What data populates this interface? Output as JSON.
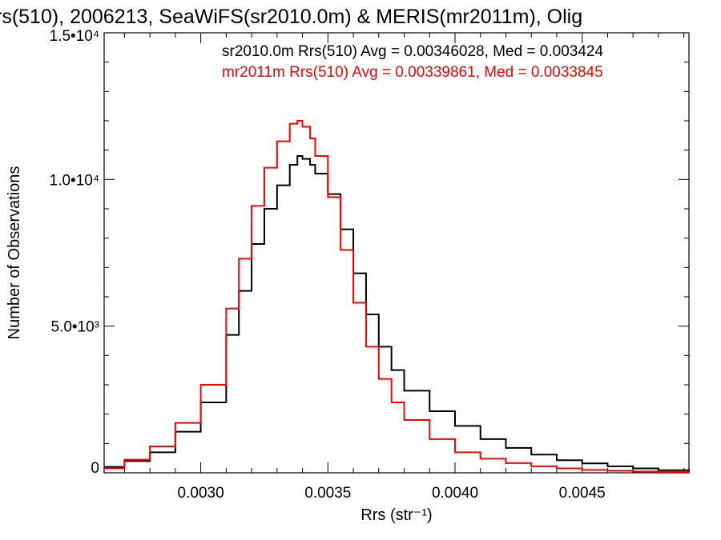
{
  "chart_data": {
    "type": "line",
    "title": "rs(510), 2006213, SeaWiFS(sr2010.0m) & MERIS(mr2011m), Olig",
    "xlabel": "Rrs (str⁻¹)",
    "ylabel": "Number of Observations",
    "xlim": [
      0.00262,
      0.00492
    ],
    "ylim": [
      0,
      15000
    ],
    "x_ticks": [
      {
        "value": 0.003,
        "label": "0.0030"
      },
      {
        "value": 0.0035,
        "label": "0.0035"
      },
      {
        "value": 0.004,
        "label": "0.0040"
      },
      {
        "value": 0.0045,
        "label": "0.0045"
      }
    ],
    "y_ticks": [
      {
        "value": 0,
        "label": "0"
      },
      {
        "value": 5000,
        "label": "5.0•10³"
      },
      {
        "value": 10000,
        "label": "1.0•10⁴"
      },
      {
        "value": 15000,
        "label": "1.5•10⁴"
      }
    ],
    "grid": false,
    "legend_placement": "top-right",
    "colors": {
      "sr": "#000000",
      "mr": "#ff0000"
    },
    "series": [
      {
        "name": "sr2010.0m",
        "color": "#000000",
        "legend_text": "sr2010.0m Rrs(510) Avg = 0.00346028, Med = 0.003424",
        "x": [
          0.00262,
          0.0027,
          0.0028,
          0.0029,
          0.003,
          0.0031,
          0.00315,
          0.0032,
          0.00325,
          0.0033,
          0.00335,
          0.00338,
          0.0034,
          0.00343,
          0.00345,
          0.0035,
          0.00355,
          0.0036,
          0.00365,
          0.0037,
          0.00375,
          0.0038,
          0.0039,
          0.004,
          0.0041,
          0.0042,
          0.0043,
          0.0044,
          0.0045,
          0.0046,
          0.0047,
          0.0048,
          0.00492
        ],
        "values": [
          200,
          400,
          700,
          1400,
          2400,
          4700,
          6200,
          7800,
          9000,
          9800,
          10500,
          10800,
          10700,
          10500,
          10200,
          9500,
          8300,
          6800,
          5400,
          4300,
          3500,
          2800,
          2100,
          1600,
          1150,
          850,
          620,
          430,
          320,
          220,
          150,
          90,
          40
        ]
      },
      {
        "name": "mr2011m",
        "color": "#ff0000",
        "legend_text": "mr2011m Rrs(510) Avg = 0.00339861, Med = 0.0033845",
        "x": [
          0.00262,
          0.0027,
          0.0028,
          0.0029,
          0.003,
          0.0031,
          0.00315,
          0.0032,
          0.00325,
          0.0033,
          0.00335,
          0.00338,
          0.0034,
          0.00343,
          0.00345,
          0.0035,
          0.00355,
          0.0036,
          0.00365,
          0.0037,
          0.00375,
          0.0038,
          0.0039,
          0.004,
          0.0041,
          0.0042,
          0.0043,
          0.0044,
          0.0045,
          0.0046,
          0.0047,
          0.0048,
          0.00492
        ],
        "values": [
          150,
          450,
          900,
          1700,
          3000,
          5600,
          7300,
          9100,
          10400,
          11300,
          11900,
          12000,
          11800,
          11400,
          10800,
          9400,
          7600,
          5800,
          4300,
          3200,
          2400,
          1800,
          1150,
          700,
          480,
          330,
          220,
          150,
          100,
          70,
          45,
          30,
          20
        ]
      }
    ]
  }
}
